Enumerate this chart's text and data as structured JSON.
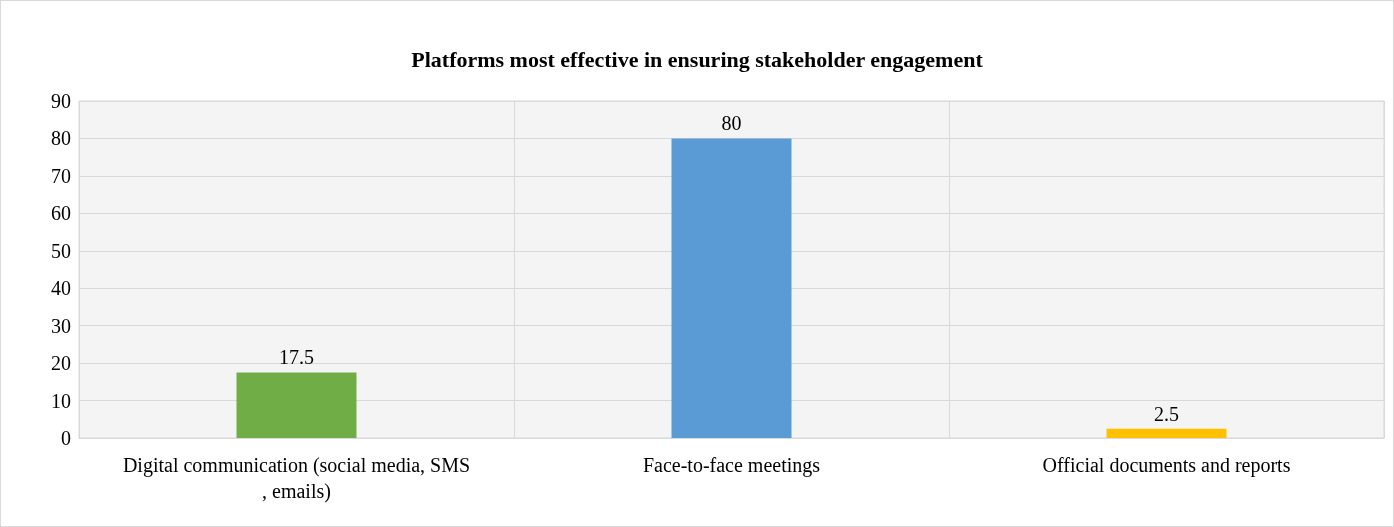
{
  "chart_data": {
    "type": "bar",
    "title": "Platforms most effective in ensuring stakeholder engagement",
    "categories": [
      "Digital communication (social media, SMS, emails)",
      "Face-to-face meetings",
      "Official documents and reports"
    ],
    "values": [
      17.5,
      80,
      2.5
    ],
    "colors": [
      "#70ad47",
      "#5b9bd5",
      "#ffc000"
    ],
    "ylim": [
      0,
      90
    ],
    "yticks": [
      0,
      10,
      20,
      30,
      40,
      50,
      60,
      70,
      80,
      90
    ],
    "grid": true,
    "data_labels": true
  }
}
